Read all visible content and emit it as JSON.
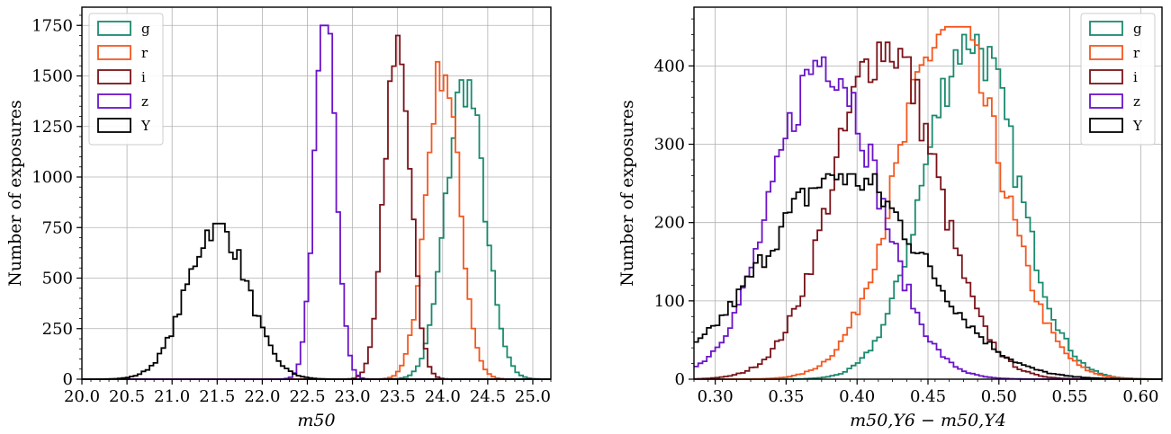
{
  "chart_data": [
    {
      "type": "histogram",
      "xlabel": "m50",
      "ylabel": "Number of exposures",
      "xlim": [
        20.0,
        25.2
      ],
      "ylim": [
        0,
        1840
      ],
      "xticks": [
        20.0,
        20.5,
        21.0,
        21.5,
        22.0,
        22.5,
        23.0,
        23.5,
        24.0,
        24.5,
        25.0
      ],
      "xtick_labels": [
        "20.0",
        "20.5",
        "21.0",
        "21.5",
        "22.0",
        "22.5",
        "23.0",
        "23.5",
        "24.0",
        "24.5",
        "25.0"
      ],
      "yticks": [
        0,
        250,
        500,
        750,
        1000,
        1250,
        1500,
        1750
      ],
      "ytick_labels": [
        "0",
        "250",
        "500",
        "750",
        "1000",
        "1250",
        "1500",
        "1750"
      ],
      "grid": true,
      "legend_position": "top-left",
      "series": [
        {
          "name": "g",
          "color": "#1a8a6e",
          "center": 24.25,
          "sigma": 0.21,
          "peak": 1480
        },
        {
          "name": "r",
          "color": "#f4581f",
          "center": 24.0,
          "sigma": 0.18,
          "peak": 1570
        },
        {
          "name": "i",
          "color": "#7a1218",
          "center": 23.5,
          "sigma": 0.14,
          "peak": 1700
        },
        {
          "name": "z",
          "color": "#6a13c9",
          "center": 22.7,
          "sigma": 0.12,
          "peak": 1750
        },
        {
          "name": "Y",
          "color": "#000000",
          "center": 21.5,
          "sigma": 0.33,
          "peak": 770
        }
      ]
    },
    {
      "type": "histogram",
      "xlabel": "m50,Y6 − m50,Y4",
      "ylabel": "Number of exposures",
      "xlim": [
        0.285,
        0.615
      ],
      "ylim": [
        0,
        475
      ],
      "xticks": [
        0.3,
        0.35,
        0.4,
        0.45,
        0.5,
        0.55,
        0.6
      ],
      "xtick_labels": [
        "0.30",
        "0.35",
        "0.40",
        "0.45",
        "0.50",
        "0.55",
        "0.60"
      ],
      "yticks": [
        0,
        100,
        200,
        300,
        400
      ],
      "ytick_labels": [
        "0",
        "100",
        "200",
        "300",
        "400"
      ],
      "grid": true,
      "legend_position": "top-right",
      "series": [
        {
          "name": "g",
          "color": "#1a8a6e",
          "center": 0.48,
          "sigma": 0.032,
          "peak": 440
        },
        {
          "name": "r",
          "color": "#f4581f",
          "center": 0.465,
          "sigma": 0.036,
          "peak": 450
        },
        {
          "name": "i",
          "color": "#7a1218",
          "center": 0.42,
          "sigma": 0.036,
          "peak": 430
        },
        {
          "name": "z",
          "color": "#6a13c9",
          "center": 0.378,
          "sigma": 0.036,
          "peak": 412
        },
        {
          "name": "Y",
          "color": "#000000",
          "center": 0.39,
          "sigma": 0.055,
          "peak": 262
        }
      ]
    }
  ],
  "legend_labels": [
    "g",
    "r",
    "i",
    "z",
    "Y"
  ]
}
